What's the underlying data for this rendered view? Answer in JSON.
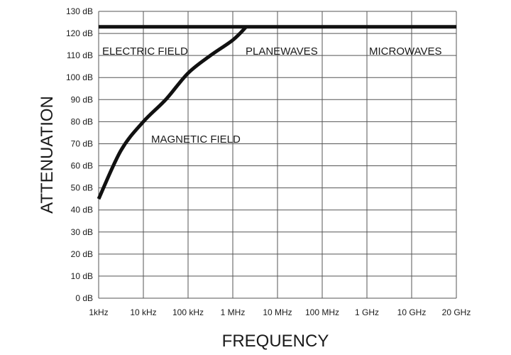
{
  "chart_data": {
    "type": "line",
    "xlabel": "FREQUENCY",
    "ylabel": "ATTENUATION",
    "x_categories": [
      "1kHz",
      "10 kHz",
      "100 kHz",
      "1 MHz",
      "10 MHz",
      "100 MHz",
      "1 GHz",
      "10 GHz",
      "20 GHz"
    ],
    "y_ticks": [
      "0 dB",
      "10 dB",
      "20 dB",
      "30 dB",
      "40 dB",
      "50 dB",
      "60 dB",
      "70 dB",
      "80 dB",
      "90 dB",
      "100 dB",
      "110 dB",
      "120 dB",
      "130 dB"
    ],
    "ylim": [
      0,
      130
    ],
    "grid": true,
    "series": [
      {
        "name": "MAGNETIC FIELD",
        "x_index": [
          0,
          0.5,
          1,
          1.5,
          2,
          2.5,
          3,
          3.3
        ],
        "values": [
          45,
          67,
          80,
          90,
          102,
          110,
          117,
          123
        ]
      },
      {
        "name": "ELECTRIC FIELD",
        "x_index": [
          0,
          8
        ],
        "values": [
          123,
          123
        ]
      }
    ],
    "annotations": [
      "ELECTRIC FIELD",
      "PLANEWAVES",
      "MICROWAVES",
      "MAGNETIC FIELD"
    ]
  }
}
